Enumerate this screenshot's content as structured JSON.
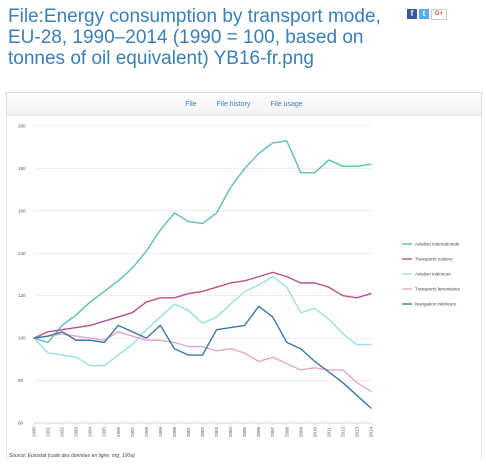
{
  "page": {
    "title": "File:Energy consumption by transport mode, EU-28, 1990–2014 (1990 = 100, based on tonnes of oil equivalent) YB16-fr.png"
  },
  "share": {
    "facebook": "f",
    "twitter": "t",
    "googleplus": "G+"
  },
  "tabs": [
    {
      "label": "File"
    },
    {
      "label": "File history"
    },
    {
      "label": "File usage"
    }
  ],
  "colors": {
    "aviation_internationale": "#5bbfb5",
    "transports_routiers": "#b5508f",
    "aviation_interieure": "#9be0de",
    "transports_ferroviaires": "#e4a6cd",
    "navigation_interieure": "#3d77a6"
  },
  "chart_data": {
    "type": "line",
    "title": "",
    "xlabel": "",
    "ylabel": "",
    "ylim": [
      60,
      200
    ],
    "yticks": [
      60,
      80,
      100,
      120,
      140,
      160,
      180,
      200
    ],
    "grid": "horizontal",
    "legend_position": "right",
    "x": [
      1990,
      1991,
      1992,
      1993,
      1994,
      1995,
      1996,
      1997,
      1998,
      1999,
      2000,
      2001,
      2002,
      2003,
      2004,
      2005,
      2006,
      2007,
      2008,
      2009,
      2010,
      2011,
      2012,
      2013,
      2014
    ],
    "series": [
      {
        "name": "Aviation internationale",
        "values": [
          100,
          98,
          106,
          111,
          117,
          122,
          127,
          133,
          141,
          151,
          159,
          155,
          154,
          159,
          171,
          180,
          187,
          192,
          193,
          178,
          178,
          184,
          181,
          181,
          182
        ]
      },
      {
        "name": "Transports routiers",
        "values": [
          100,
          103,
          104,
          105,
          106,
          108,
          110,
          112,
          117,
          119,
          119,
          121,
          122,
          124,
          126,
          127,
          129,
          131,
          129,
          126,
          126,
          124,
          120,
          119,
          121
        ]
      },
      {
        "name": "Aviation intérieure",
        "values": [
          100,
          93,
          92,
          91,
          87,
          87,
          92,
          97,
          104,
          110,
          116,
          113,
          107,
          110,
          116,
          122,
          125,
          129,
          124,
          112,
          114,
          109,
          102,
          97,
          97
        ]
      },
      {
        "name": "Transports ferroviaires",
        "values": [
          100,
          101,
          102,
          101,
          100,
          99,
          103,
          101,
          99,
          99,
          98,
          96,
          96,
          94,
          95,
          93,
          89,
          91,
          88,
          85,
          86,
          85,
          85,
          79,
          75
        ]
      },
      {
        "name": "Navigation intérieure",
        "values": [
          100,
          101,
          103,
          99,
          99,
          98,
          106,
          103,
          100,
          106,
          95,
          92,
          92,
          104,
          105,
          106,
          115,
          110,
          98,
          95,
          89,
          84,
          79,
          73,
          67
        ]
      }
    ],
    "source": "Source: Eurostat (code des données en ligne: nrg_100a)"
  }
}
